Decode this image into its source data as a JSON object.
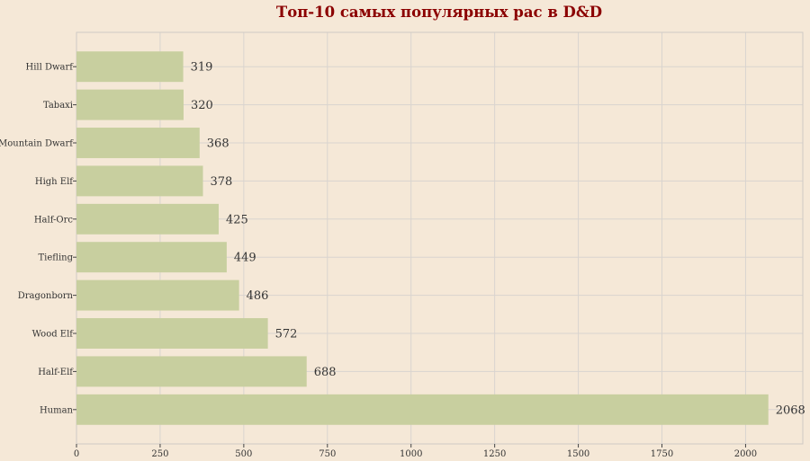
{
  "chart_data": {
    "type": "bar",
    "orientation": "horizontal",
    "title": "Топ-10 самых популярных рас в D&D",
    "xlabel": "",
    "ylabel": "",
    "categories": [
      "Human",
      "Half-Elf",
      "Wood Elf",
      "Dragonborn",
      "Tiefling",
      "Half-Orc",
      "High Elf",
      "Mountain Dwarf",
      "Tabaxi",
      "Hill Dwarf"
    ],
    "values": [
      2068,
      688,
      572,
      486,
      449,
      425,
      378,
      368,
      320,
      319
    ],
    "xlim": [
      0,
      2171
    ],
    "xticks": [
      0,
      250,
      500,
      750,
      1000,
      1250,
      1500,
      1750,
      2000
    ],
    "grid": true,
    "legend": "none",
    "colors": {
      "background": "#f5e8d7",
      "bar": "#c8cf9f",
      "title": "#8b0000",
      "grid": "#d9d4cf",
      "text": "#333333"
    }
  }
}
